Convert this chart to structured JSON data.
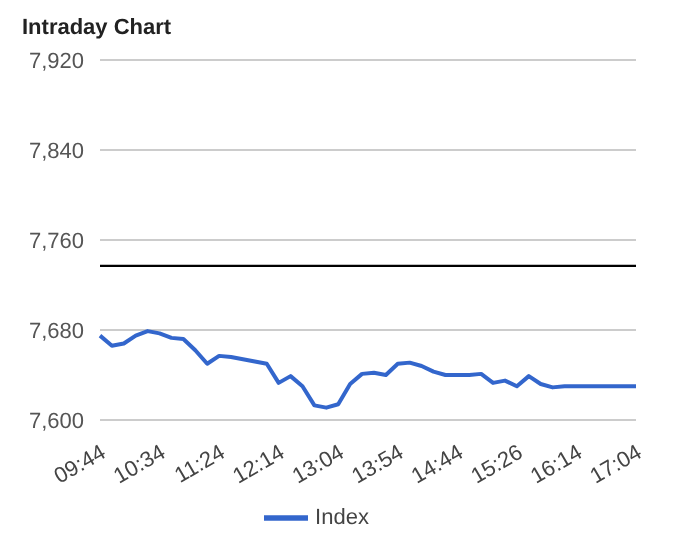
{
  "chart_data": {
    "type": "line",
    "title": "Intraday Chart",
    "categories": [
      "09:44",
      null,
      null,
      null,
      null,
      "10:34",
      null,
      null,
      null,
      null,
      "11:24",
      null,
      null,
      null,
      null,
      "12:14",
      null,
      null,
      null,
      null,
      "13:04",
      null,
      null,
      null,
      null,
      "13:54",
      null,
      null,
      null,
      null,
      "14:44",
      null,
      null,
      null,
      null,
      "15:26",
      null,
      null,
      null,
      null,
      "16:14",
      null,
      null,
      null,
      null,
      "17:04"
    ],
    "series": [
      {
        "name": "Index",
        "color": "#3366cc",
        "values": [
          7675,
          7666,
          7668,
          7675,
          7679,
          7677,
          7673,
          7672,
          7662,
          7650,
          7657,
          7656,
          7654,
          7652,
          7650,
          7633,
          7639,
          7630,
          7613,
          7611,
          7614,
          7632,
          7641,
          7642,
          7640,
          7650,
          7651,
          7648,
          7643,
          7640,
          7640,
          7640,
          7641,
          7633,
          7635,
          7630,
          7639,
          7632,
          7629,
          7630,
          7630,
          7630,
          7630,
          7630,
          7630,
          7630
        ]
      }
    ],
    "ylim": [
      7600,
      7920
    ],
    "yticks": [
      {
        "value": 7600,
        "label": "7,600"
      },
      {
        "value": 7680,
        "label": "7,680"
      },
      {
        "value": 7760,
        "label": "7,760"
      },
      {
        "value": 7840,
        "label": "7,840"
      },
      {
        "value": 7920,
        "label": "7,920"
      }
    ],
    "ref_lines": [
      {
        "axis": "y",
        "value": 7737,
        "color": "#000000"
      }
    ],
    "grid": "y",
    "legend": "bottom",
    "marker": "none",
    "line_style": "solid"
  }
}
